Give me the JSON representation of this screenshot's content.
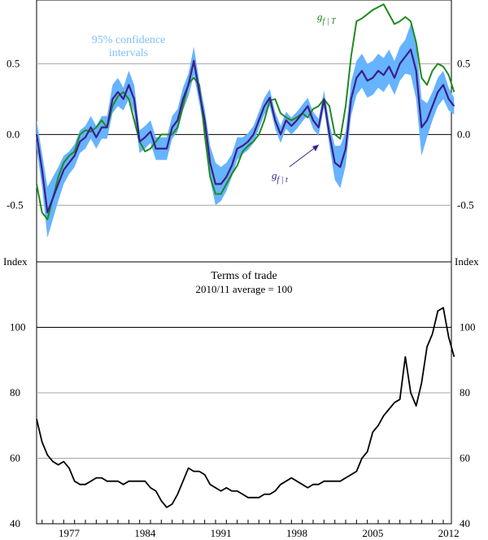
{
  "colors": {
    "ci_band": "#66b3ff",
    "g_fT": "#1f8a1f",
    "g_ft": "#3b1f8a",
    "tot": "#000000",
    "grid": "#a6a6a6",
    "zero": "#000000"
  },
  "chart_data": [
    {
      "type": "line",
      "panel": "top",
      "x_start": 1974.5,
      "x_end": 2012.75,
      "step": 0.5,
      "ylim": [
        -0.9,
        0.95
      ],
      "ticks_left": [
        "0.5",
        "0.0",
        "-0.5"
      ],
      "ticks_right": [
        "0.5",
        "0.0",
        "-0.5"
      ],
      "tick_values": [
        0.5,
        0.0,
        -0.5
      ],
      "ci_label": [
        "95% confidence",
        "intervals"
      ],
      "series": [
        {
          "name": "g_f|T",
          "label_base": "g",
          "label_sub": "f | T",
          "values": [
            -0.35,
            -0.55,
            -0.6,
            -0.45,
            -0.3,
            -0.2,
            -0.15,
            -0.12,
            0.0,
            0.03,
            0.02,
            0.05,
            0.1,
            0.05,
            0.2,
            0.27,
            0.3,
            0.25,
            0.1,
            -0.05,
            -0.12,
            -0.1,
            -0.05,
            0.0,
            0.0,
            0.0,
            0.05,
            0.2,
            0.36,
            0.4,
            0.35,
            0.0,
            -0.3,
            -0.42,
            -0.42,
            -0.35,
            -0.28,
            -0.22,
            -0.12,
            -0.08,
            -0.05,
            0.0,
            0.1,
            0.24,
            0.25,
            0.15,
            0.12,
            0.1,
            0.12,
            0.15,
            0.12,
            0.18,
            0.2,
            0.25,
            0.2,
            0.0,
            -0.03,
            0.2,
            0.55,
            0.8,
            0.82,
            0.85,
            0.88,
            0.9,
            0.92,
            0.85,
            0.78,
            0.8,
            0.83,
            0.8,
            0.65,
            0.4,
            0.35,
            0.45,
            0.5,
            0.48,
            0.42,
            0.3
          ]
        },
        {
          "name": "g_f|t",
          "label_base": "g",
          "label_sub": "f | t",
          "values": [
            0.0,
            -0.25,
            -0.55,
            -0.45,
            -0.35,
            -0.25,
            -0.2,
            -0.15,
            -0.05,
            -0.02,
            0.05,
            -0.02,
            0.05,
            0.05,
            0.25,
            0.3,
            0.25,
            0.35,
            0.25,
            -0.05,
            -0.02,
            0.02,
            -0.1,
            -0.1,
            -0.1,
            0.05,
            0.1,
            0.25,
            0.35,
            0.52,
            0.3,
            0.1,
            -0.2,
            -0.35,
            -0.35,
            -0.3,
            -0.22,
            -0.1,
            -0.08,
            -0.05,
            0.0,
            0.1,
            0.2,
            0.26,
            0.1,
            0.0,
            0.1,
            0.06,
            0.1,
            0.15,
            0.2,
            0.1,
            0.05,
            0.25,
            0.0,
            -0.2,
            -0.23,
            -0.1,
            0.25,
            0.4,
            0.45,
            0.38,
            0.4,
            0.45,
            0.42,
            0.48,
            0.4,
            0.5,
            0.55,
            0.6,
            0.45,
            0.05,
            0.1,
            0.2,
            0.3,
            0.35,
            0.25,
            0.2
          ]
        }
      ],
      "ci_width": [
        0.1,
        0.12,
        0.18,
        0.15,
        0.12,
        0.1,
        0.08,
        0.08,
        0.08,
        0.08,
        0.08,
        0.08,
        0.08,
        0.08,
        0.1,
        0.1,
        0.08,
        0.1,
        0.1,
        0.08,
        0.08,
        0.08,
        0.08,
        0.08,
        0.08,
        0.08,
        0.08,
        0.08,
        0.08,
        0.1,
        0.08,
        0.08,
        0.12,
        0.15,
        0.12,
        0.1,
        0.08,
        0.08,
        0.06,
        0.06,
        0.06,
        0.06,
        0.06,
        0.06,
        0.06,
        0.06,
        0.06,
        0.06,
        0.06,
        0.06,
        0.06,
        0.06,
        0.06,
        0.06,
        0.08,
        0.12,
        0.15,
        0.12,
        0.12,
        0.12,
        0.12,
        0.12,
        0.12,
        0.12,
        0.12,
        0.12,
        0.12,
        0.12,
        0.12,
        0.18,
        0.2,
        0.2,
        0.12,
        0.1,
        0.1,
        0.1,
        0.08,
        0.06
      ]
    },
    {
      "type": "line",
      "panel": "bottom",
      "title": "Terms of trade",
      "subtitle": "2010/11 average = 100",
      "ylabel_left": "Index",
      "ylabel_right": "Index",
      "x_start": 1974.5,
      "x_end": 2012.75,
      "step": 0.5,
      "ylim": [
        40,
        120
      ],
      "ticks_left": [
        "100",
        "80",
        "60",
        "40"
      ],
      "ticks_right": [
        "100",
        "80",
        "60",
        "40"
      ],
      "tick_values": [
        100,
        80,
        60,
        40
      ],
      "x_tick_labels": [
        "1977",
        "1984",
        "1991",
        "1998",
        "2005",
        "2012"
      ],
      "x_tick_values": [
        1977.5,
        1984.5,
        1991.5,
        1998.5,
        2005.5,
        2012.5
      ],
      "series": [
        {
          "name": "Terms of trade",
          "values": [
            72,
            65,
            61,
            59,
            58,
            59,
            57,
            53,
            52,
            52,
            53,
            54,
            54,
            53,
            53,
            53,
            52,
            53,
            53,
            53,
            53,
            51,
            50,
            47,
            45,
            46,
            49,
            53,
            57,
            56,
            56,
            55,
            52,
            51,
            50,
            51,
            50,
            50,
            49,
            48,
            48,
            48,
            49,
            49,
            50,
            52,
            53,
            54,
            53,
            52,
            51,
            52,
            52,
            53,
            53,
            53,
            53,
            54,
            55,
            56,
            60,
            62,
            68,
            70,
            73,
            75,
            77,
            78,
            91,
            80,
            76,
            83,
            94,
            98,
            105,
            106,
            97,
            91
          ]
        }
      ]
    }
  ]
}
